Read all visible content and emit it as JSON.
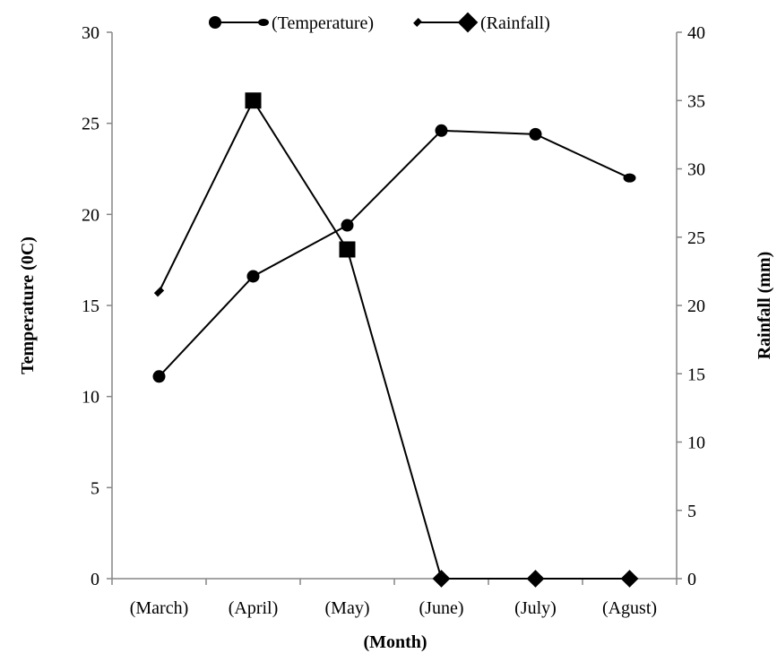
{
  "chart_data": {
    "type": "line",
    "categories": [
      "(March)",
      "(April)",
      "(May)",
      "(June)",
      "(July)",
      "(Agust)"
    ],
    "xlabel": "(Month)",
    "ylabel_left": "Temperature (0C)",
    "ylabel_right": "Rainfall (mm)",
    "ylim_left": [
      0,
      30
    ],
    "ylim_right": [
      0,
      40
    ],
    "yticks_left": [
      0,
      5,
      10,
      15,
      20,
      25,
      30
    ],
    "yticks_right": [
      0,
      5,
      10,
      15,
      20,
      25,
      30,
      35,
      40
    ],
    "grid": false,
    "legend_position": "top",
    "series": [
      {
        "name": "(Temperature)",
        "axis": "left",
        "marker": "circle",
        "values": [
          11.1,
          16.6,
          19.4,
          24.6,
          24.4,
          22.0
        ]
      },
      {
        "name": "(Rainfall)",
        "axis": "right",
        "marker": "square",
        "values": [
          21.0,
          35.0,
          24.1,
          0,
          0,
          0
        ]
      }
    ],
    "colors": {
      "line": "#000000",
      "axis": "#868686"
    }
  }
}
